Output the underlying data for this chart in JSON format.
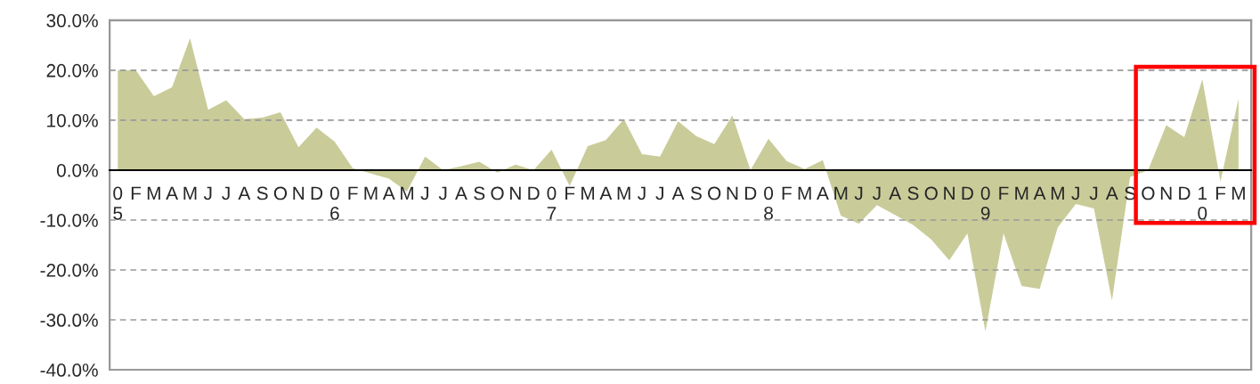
{
  "chart_data": {
    "type": "area",
    "categories": [
      "0\n5",
      "F",
      "M",
      "A",
      "M",
      "J",
      "J",
      "A",
      "S",
      "O",
      "N",
      "D",
      "0\n6",
      "F",
      "M",
      "A",
      "M",
      "J",
      "J",
      "A",
      "S",
      "O",
      "N",
      "D",
      "0\n7",
      "F",
      "M",
      "A",
      "M",
      "J",
      "J",
      "A",
      "S",
      "O",
      "N",
      "D",
      "0\n8",
      "F",
      "M",
      "A",
      "M",
      "J",
      "J",
      "A",
      "S",
      "O",
      "N",
      "D",
      "0\n9",
      "F",
      "M",
      "A",
      "M",
      "J",
      "J",
      "A",
      "S",
      "O",
      "N",
      "D",
      "1\n0",
      "F",
      "M"
    ],
    "values": [
      20.0,
      20.0,
      14.8,
      16.6,
      26.4,
      12.1,
      14.0,
      10.2,
      10.5,
      11.6,
      4.6,
      8.5,
      5.7,
      0.4,
      -0.7,
      -1.7,
      -4.3,
      2.7,
      0.0,
      0.8,
      1.7,
      -0.5,
      1.1,
      0.0,
      4.1,
      -3.2,
      4.8,
      6.0,
      10.2,
      3.2,
      2.7,
      9.8,
      6.8,
      5.2,
      10.9,
      0.0,
      6.3,
      1.8,
      0.2,
      2.0,
      -9.1,
      -10.7,
      -7.0,
      -9.0,
      -11.0,
      -13.9,
      -18.1,
      -12.7,
      -32.3,
      -12.7,
      -23.2,
      -23.8,
      -11.5,
      -6.8,
      -7.7,
      -26.1,
      -1.4,
      0.0,
      9.0,
      6.6,
      18.2,
      -2.3,
      14.3
    ],
    "color": "#c9cc99",
    "ylim": [
      -40,
      30
    ],
    "yticks": [
      {
        "value": -40,
        "label": "-40.0%"
      },
      {
        "value": -30,
        "label": "-30.0%"
      },
      {
        "value": -20,
        "label": "-20.0%"
      },
      {
        "value": -10,
        "label": "-10.0%"
      },
      {
        "value": 0,
        "label": "0.0%"
      },
      {
        "value": 10,
        "label": "10.0%"
      },
      {
        "value": 20,
        "label": "20.0%"
      },
      {
        "value": 30,
        "label": "30.0%"
      }
    ],
    "grid": "y"
  }
}
